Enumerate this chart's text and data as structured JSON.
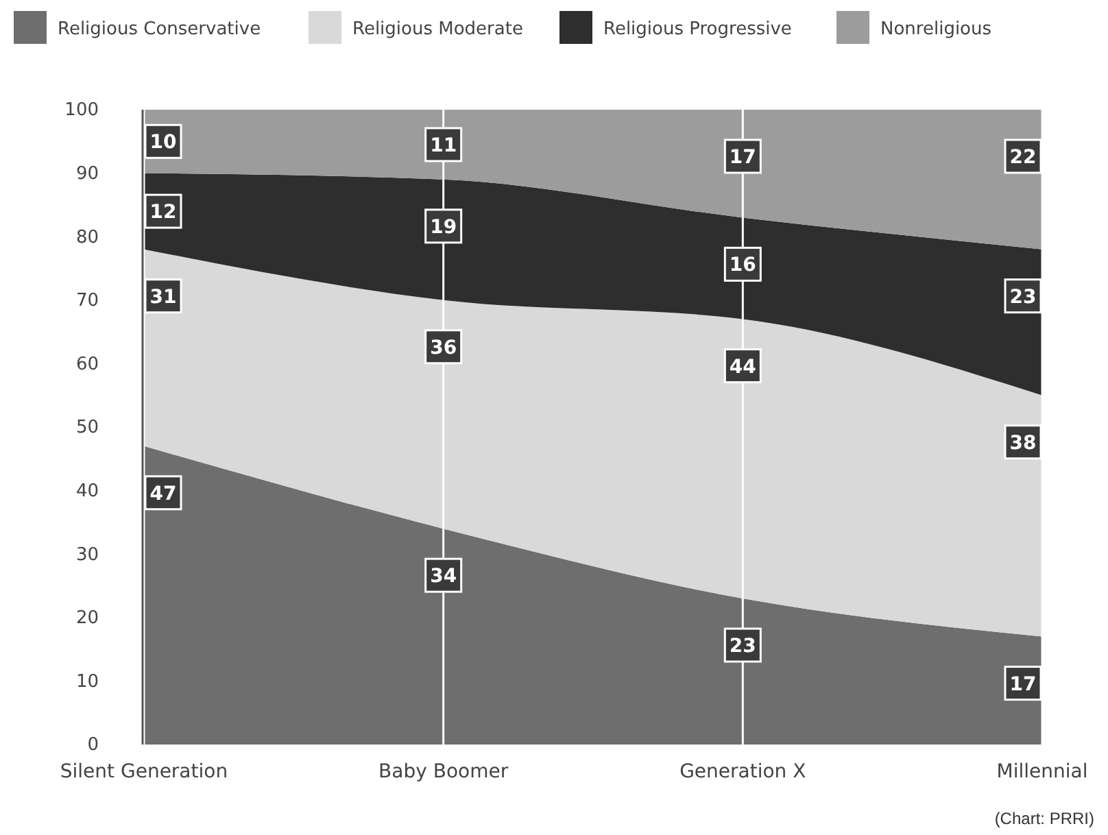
{
  "chart_data": {
    "type": "area",
    "stacked": true,
    "categories": [
      "Silent Generation",
      "Baby Boomer",
      "Generation X",
      "Millennial"
    ],
    "series": [
      {
        "name": "Religious Conservative",
        "color": "#6e6e6e",
        "values": [
          47,
          34,
          23,
          17
        ]
      },
      {
        "name": "Religious Moderate",
        "color": "#d9d9d9",
        "values": [
          31,
          36,
          44,
          38
        ]
      },
      {
        "name": "Religious Progressive",
        "color": "#2e2e2e",
        "values": [
          12,
          19,
          16,
          23
        ]
      },
      {
        "name": "Nonreligious",
        "color": "#9c9c9c",
        "values": [
          10,
          11,
          17,
          22
        ]
      }
    ],
    "ylim": [
      0,
      100
    ],
    "yticks": [
      0,
      10,
      20,
      30,
      40,
      50,
      60,
      70,
      80,
      90,
      100
    ],
    "grid": "x",
    "legend": "top",
    "data_labels": true,
    "annotations": [
      "(Chart: PRRI)"
    ]
  }
}
